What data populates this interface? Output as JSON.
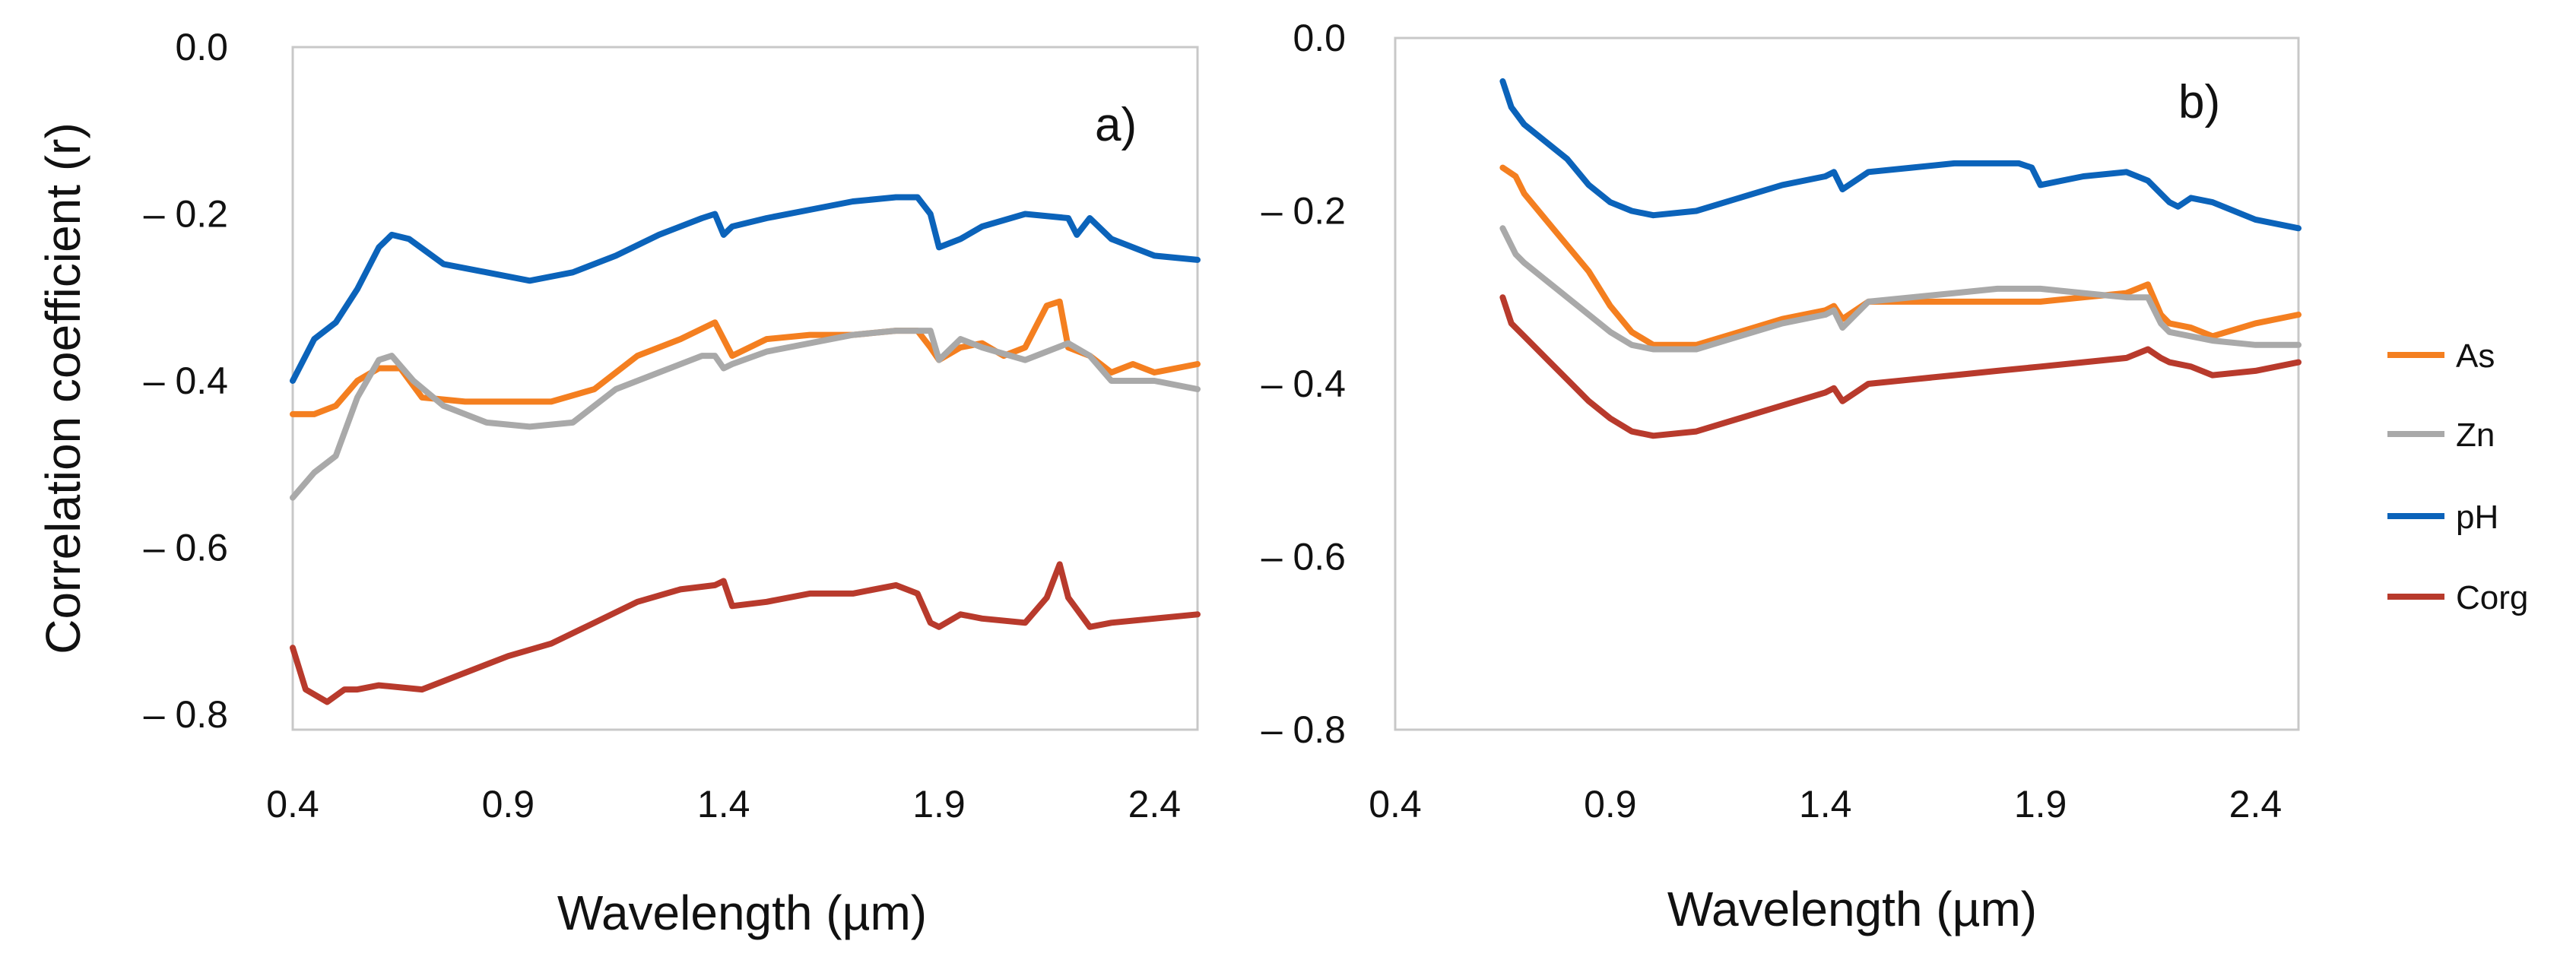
{
  "legend": [
    {
      "name": "As",
      "color": "#F47F20"
    },
    {
      "name": "Zn",
      "color": "#A9A9A9"
    },
    {
      "name": "pH",
      "color": "#0B63BA"
    },
    {
      "name": "Corg",
      "color": "#B83A2C"
    }
  ],
  "chart_data": [
    {
      "type": "line",
      "panel_label": "a)",
      "xlabel": "Wavelength (µm)",
      "ylabel": "Correlation coefficient (r)",
      "xlim": [
        0.4,
        2.5
      ],
      "ylim": [
        -0.8,
        0.0
      ],
      "xticks": [
        0.4,
        0.9,
        1.4,
        1.9,
        2.4
      ],
      "xtick_labels": [
        "0.4",
        "0.9",
        "1.4",
        "1.9",
        "2.4"
      ],
      "yticks": [
        0.0,
        -0.2,
        -0.4,
        -0.6,
        -0.8
      ],
      "ytick_labels": [
        "0.0",
        "– 0.2",
        "– 0.4",
        "– 0.6",
        "– 0.8"
      ],
      "series": [
        {
          "name": "pH",
          "x": [
            0.4,
            0.45,
            0.5,
            0.55,
            0.6,
            0.63,
            0.67,
            0.75,
            0.85,
            0.95,
            1.05,
            1.15,
            1.25,
            1.35,
            1.38,
            1.4,
            1.42,
            1.5,
            1.6,
            1.7,
            1.8,
            1.85,
            1.88,
            1.9,
            1.95,
            2.0,
            2.1,
            2.2,
            2.22,
            2.25,
            2.3,
            2.4,
            2.5
          ],
          "y": [
            -0.4,
            -0.35,
            -0.33,
            -0.29,
            -0.24,
            -0.225,
            -0.23,
            -0.26,
            -0.27,
            -0.28,
            -0.27,
            -0.25,
            -0.225,
            -0.205,
            -0.2,
            -0.225,
            -0.215,
            -0.205,
            -0.195,
            -0.185,
            -0.18,
            -0.18,
            -0.2,
            -0.24,
            -0.23,
            -0.215,
            -0.2,
            -0.205,
            -0.225,
            -0.205,
            -0.23,
            -0.25,
            -0.255
          ]
        },
        {
          "name": "As",
          "x": [
            0.4,
            0.45,
            0.5,
            0.55,
            0.6,
            0.65,
            0.7,
            0.8,
            0.9,
            1.0,
            1.1,
            1.2,
            1.3,
            1.38,
            1.42,
            1.5,
            1.6,
            1.7,
            1.8,
            1.85,
            1.88,
            1.9,
            1.95,
            2.0,
            2.05,
            2.1,
            2.15,
            2.18,
            2.2,
            2.25,
            2.3,
            2.35,
            2.4,
            2.5
          ],
          "y": [
            -0.44,
            -0.44,
            -0.43,
            -0.4,
            -0.385,
            -0.385,
            -0.42,
            -0.425,
            -0.425,
            -0.425,
            -0.41,
            -0.37,
            -0.35,
            -0.33,
            -0.37,
            -0.35,
            -0.345,
            -0.345,
            -0.34,
            -0.34,
            -0.36,
            -0.375,
            -0.36,
            -0.355,
            -0.37,
            -0.36,
            -0.31,
            -0.305,
            -0.36,
            -0.37,
            -0.39,
            -0.38,
            -0.39,
            -0.38
          ]
        },
        {
          "name": "Zn",
          "x": [
            0.4,
            0.45,
            0.5,
            0.55,
            0.6,
            0.63,
            0.68,
            0.75,
            0.85,
            0.95,
            1.05,
            1.15,
            1.25,
            1.35,
            1.38,
            1.4,
            1.42,
            1.5,
            1.6,
            1.7,
            1.8,
            1.88,
            1.9,
            1.95,
            2.0,
            2.1,
            2.2,
            2.25,
            2.3,
            2.4,
            2.5
          ],
          "y": [
            -0.54,
            -0.51,
            -0.49,
            -0.42,
            -0.375,
            -0.37,
            -0.4,
            -0.43,
            -0.45,
            -0.455,
            -0.45,
            -0.41,
            -0.39,
            -0.37,
            -0.37,
            -0.385,
            -0.38,
            -0.365,
            -0.355,
            -0.345,
            -0.34,
            -0.34,
            -0.375,
            -0.35,
            -0.36,
            -0.375,
            -0.355,
            -0.37,
            -0.4,
            -0.4,
            -0.41
          ]
        },
        {
          "name": "Corg",
          "x": [
            0.4,
            0.43,
            0.48,
            0.52,
            0.55,
            0.6,
            0.7,
            0.8,
            0.9,
            1.0,
            1.1,
            1.2,
            1.3,
            1.38,
            1.4,
            1.42,
            1.5,
            1.6,
            1.7,
            1.8,
            1.85,
            1.88,
            1.9,
            1.95,
            2.0,
            2.1,
            2.15,
            2.18,
            2.2,
            2.25,
            2.3,
            2.4,
            2.5
          ],
          "y": [
            -0.72,
            -0.77,
            -0.785,
            -0.77,
            -0.77,
            -0.765,
            -0.77,
            -0.75,
            -0.73,
            -0.715,
            -0.69,
            -0.665,
            -0.65,
            -0.645,
            -0.64,
            -0.67,
            -0.665,
            -0.655,
            -0.655,
            -0.645,
            -0.655,
            -0.69,
            -0.695,
            -0.68,
            -0.685,
            -0.69,
            -0.66,
            -0.62,
            -0.66,
            -0.695,
            -0.69,
            -0.685,
            -0.68
          ]
        }
      ]
    },
    {
      "type": "line",
      "panel_label": "b)",
      "xlabel": "Wavelength (µm)",
      "ylabel": "",
      "xlim": [
        0.4,
        2.5
      ],
      "ylim": [
        -0.8,
        0.0
      ],
      "xticks": [
        0.4,
        0.9,
        1.4,
        1.9,
        2.4
      ],
      "xtick_labels": [
        "0.4",
        "0.9",
        "1.4",
        "1.9",
        "2.4"
      ],
      "yticks": [
        0.0,
        -0.2,
        -0.4,
        -0.6,
        -0.8
      ],
      "ytick_labels": [
        "0.0",
        "– 0.2",
        "– 0.4",
        "– 0.6",
        "– 0.8"
      ],
      "series": [
        {
          "name": "pH",
          "x": [
            0.65,
            0.67,
            0.7,
            0.75,
            0.8,
            0.85,
            0.9,
            0.95,
            1.0,
            1.1,
            1.2,
            1.3,
            1.4,
            1.42,
            1.44,
            1.5,
            1.6,
            1.7,
            1.8,
            1.85,
            1.88,
            1.9,
            1.95,
            2.0,
            2.1,
            2.15,
            2.2,
            2.22,
            2.25,
            2.3,
            2.4,
            2.5
          ],
          "y": [
            -0.05,
            -0.08,
            -0.1,
            -0.12,
            -0.14,
            -0.17,
            -0.19,
            -0.2,
            -0.205,
            -0.2,
            -0.185,
            -0.17,
            -0.16,
            -0.155,
            -0.175,
            -0.155,
            -0.15,
            -0.145,
            -0.145,
            -0.145,
            -0.15,
            -0.17,
            -0.165,
            -0.16,
            -0.155,
            -0.165,
            -0.19,
            -0.195,
            -0.185,
            -0.19,
            -0.21,
            -0.22
          ]
        },
        {
          "name": "As",
          "x": [
            0.65,
            0.68,
            0.7,
            0.75,
            0.8,
            0.85,
            0.9,
            0.95,
            1.0,
            1.1,
            1.2,
            1.3,
            1.4,
            1.42,
            1.44,
            1.5,
            1.6,
            1.7,
            1.8,
            1.9,
            2.0,
            2.1,
            2.15,
            2.18,
            2.2,
            2.25,
            2.3,
            2.4,
            2.5
          ],
          "y": [
            -0.15,
            -0.16,
            -0.18,
            -0.21,
            -0.24,
            -0.27,
            -0.31,
            -0.34,
            -0.355,
            -0.355,
            -0.34,
            -0.325,
            -0.315,
            -0.31,
            -0.325,
            -0.305,
            -0.305,
            -0.305,
            -0.305,
            -0.305,
            -0.3,
            -0.295,
            -0.285,
            -0.32,
            -0.33,
            -0.335,
            -0.345,
            -0.33,
            -0.32
          ]
        },
        {
          "name": "Zn",
          "x": [
            0.65,
            0.68,
            0.7,
            0.75,
            0.8,
            0.85,
            0.9,
            0.95,
            1.0,
            1.1,
            1.2,
            1.3,
            1.4,
            1.42,
            1.44,
            1.5,
            1.6,
            1.7,
            1.8,
            1.9,
            2.0,
            2.1,
            2.15,
            2.18,
            2.2,
            2.25,
            2.3,
            2.4,
            2.5
          ],
          "y": [
            -0.22,
            -0.25,
            -0.26,
            -0.28,
            -0.3,
            -0.32,
            -0.34,
            -0.355,
            -0.36,
            -0.36,
            -0.345,
            -0.33,
            -0.32,
            -0.315,
            -0.335,
            -0.305,
            -0.3,
            -0.295,
            -0.29,
            -0.29,
            -0.295,
            -0.3,
            -0.3,
            -0.33,
            -0.34,
            -0.345,
            -0.35,
            -0.355,
            -0.355
          ]
        },
        {
          "name": "Corg",
          "x": [
            0.65,
            0.67,
            0.7,
            0.75,
            0.8,
            0.85,
            0.9,
            0.95,
            1.0,
            1.1,
            1.2,
            1.3,
            1.4,
            1.42,
            1.44,
            1.5,
            1.6,
            1.7,
            1.8,
            1.9,
            2.0,
            2.1,
            2.15,
            2.18,
            2.2,
            2.25,
            2.3,
            2.4,
            2.5
          ],
          "y": [
            -0.3,
            -0.33,
            -0.345,
            -0.37,
            -0.395,
            -0.42,
            -0.44,
            -0.455,
            -0.46,
            -0.455,
            -0.44,
            -0.425,
            -0.41,
            -0.405,
            -0.42,
            -0.4,
            -0.395,
            -0.39,
            -0.385,
            -0.38,
            -0.375,
            -0.37,
            -0.36,
            -0.37,
            -0.375,
            -0.38,
            -0.39,
            -0.385,
            -0.375
          ]
        }
      ]
    }
  ]
}
